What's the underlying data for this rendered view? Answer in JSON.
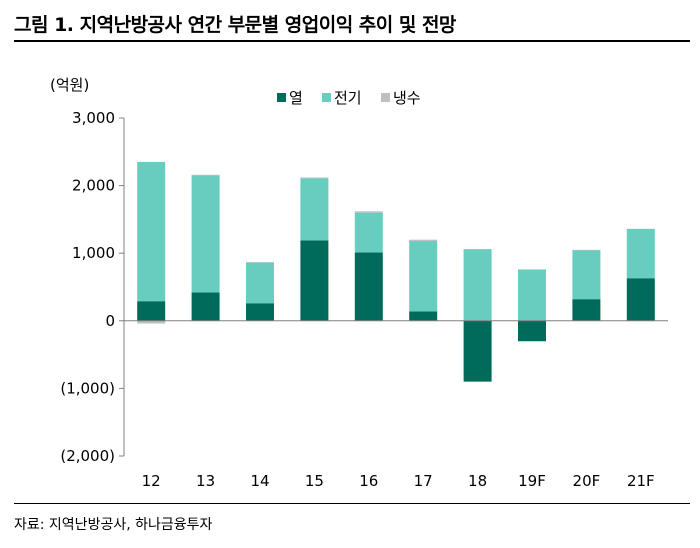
{
  "title": "그림 1. 지역난방공사 연간 부문별 영업이익 추이 및 전망",
  "source": "자료: 지역난방공사, 하나금융투자",
  "chart_data": {
    "type": "bar",
    "stacked": true,
    "unit_label": "(억원)",
    "categories": [
      "12",
      "13",
      "14",
      "15",
      "16",
      "17",
      "18",
      "19F",
      "20F",
      "21F"
    ],
    "series": [
      {
        "name": "열",
        "color": "#006B5A",
        "values": [
          290,
          420,
          260,
          1190,
          1010,
          140,
          -900,
          -300,
          320,
          630
        ]
      },
      {
        "name": "전기",
        "color": "#66CDBF",
        "values": [
          2060,
          1730,
          600,
          920,
          590,
          1040,
          1060,
          760,
          720,
          730
        ]
      },
      {
        "name": "냉수",
        "color": "#BFBFBF",
        "values": [
          -40,
          10,
          10,
          10,
          20,
          20,
          0,
          -10,
          10,
          0
        ]
      }
    ],
    "ylim": [
      -2000,
      3000
    ],
    "yticks": [
      3000,
      2000,
      1000,
      0,
      -1000,
      -2000
    ],
    "ytick_labels": [
      "3,000",
      "2,000",
      "1,000",
      "0",
      "(1,000)",
      "(2,000)"
    ],
    "grid": false,
    "legend_position": "top"
  }
}
